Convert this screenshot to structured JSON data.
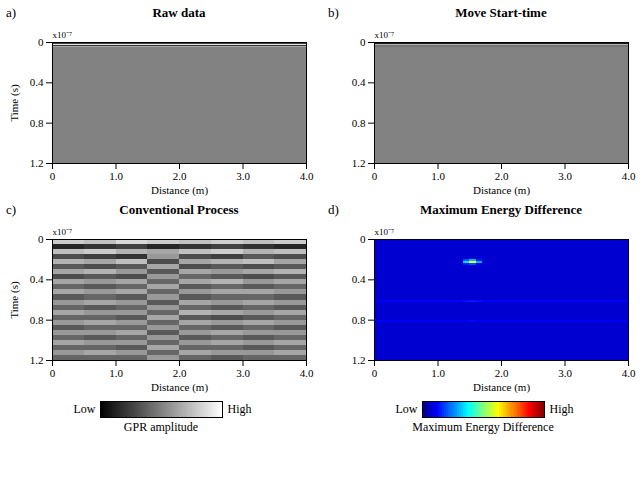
{
  "chart_data": [
    {
      "type": "heatmap",
      "title": "Raw data",
      "label": "a)",
      "xlabel": "Distance (m)",
      "ylabel": "Time (s)",
      "multiplier": "x10⁻⁷",
      "xlim": [
        0,
        4
      ],
      "ylim": [
        1.2,
        0
      ],
      "xticks": [
        0,
        {
          "value": 1,
          "label": "1.0"
        },
        {
          "value": 2,
          "label": "2.0"
        },
        {
          "value": 3,
          "label": "3.0"
        },
        {
          "value": 4,
          "label": "4.0"
        }
      ],
      "yticks": [
        0,
        0.4,
        0.8,
        1.2
      ],
      "colorscale": {
        "colors": [
          "#000000",
          "#ffffff"
        ],
        "range": [
          -1,
          1
        ]
      },
      "x_edges": [
        0,
        4
      ],
      "y_edges": [
        0,
        0.01,
        0.02,
        0.03,
        0.04,
        0.05,
        1.2
      ],
      "cells": [
        [
          0.5
        ],
        [
          -0.5
        ],
        [
          0.8
        ],
        [
          -0.6
        ],
        [
          0.3
        ],
        [
          0.02
        ]
      ]
    },
    {
      "type": "heatmap",
      "title": "Move Start-time",
      "label": "b)",
      "xlabel": "Distance (m)",
      "multiplier": "x10⁻⁷",
      "xlim": [
        0,
        4
      ],
      "ylim": [
        1.2,
        0
      ],
      "xticks": [
        0,
        {
          "value": 1,
          "label": "1.0"
        },
        {
          "value": 2,
          "label": "2.0"
        },
        {
          "value": 3,
          "label": "3.0"
        },
        {
          "value": 4,
          "label": "4.0"
        }
      ],
      "yticks": [
        0,
        0.4,
        0.8,
        1.2
      ],
      "colorscale": {
        "colors": [
          "#000000",
          "#ffffff"
        ],
        "range": [
          -1,
          1
        ]
      },
      "x_edges": [
        0,
        4
      ],
      "y_edges": [
        0,
        0.01,
        0.02,
        0.03,
        0.05,
        1.2
      ],
      "cells": [
        [
          0.9
        ],
        [
          -0.8
        ],
        [
          0.4
        ],
        [
          -0.1
        ],
        [
          0.02
        ]
      ]
    },
    {
      "type": "heatmap",
      "title": "Conventional Process",
      "label": "c)",
      "xlabel": "Distance (m)",
      "ylabel": "Time (s)",
      "multiplier": "x10⁻⁷",
      "xlim": [
        0,
        4
      ],
      "ylim": [
        1.2,
        0
      ],
      "xticks": [
        0,
        {
          "value": 1,
          "label": "1.0"
        },
        {
          "value": 2,
          "label": "2.0"
        },
        {
          "value": 3,
          "label": "3.0"
        },
        {
          "value": 4,
          "label": "4.0"
        }
      ],
      "yticks": [
        0,
        0.4,
        0.8,
        1.2
      ],
      "colorscale": {
        "colors": [
          "#000000",
          "#ffffff"
        ],
        "range": [
          -1,
          1
        ]
      },
      "colorbar": {
        "label": "GPR amplitude",
        "ticks": [
          {
            "value": -1,
            "label": "Low"
          },
          {
            "value": 1,
            "label": "High"
          }
        ]
      },
      "x_edges": [
        0,
        0.5,
        1,
        1.5,
        2,
        2.5,
        3,
        3.5,
        4
      ],
      "y_edges": [
        0,
        0.05,
        0.1,
        0.15,
        0.2,
        0.25,
        0.3,
        0.35,
        0.4,
        0.45,
        0.5,
        0.55,
        0.6,
        0.65,
        0.7,
        0.75,
        0.8,
        0.85,
        0.9,
        0.95,
        1,
        1.05,
        1.1,
        1.15,
        1.2
      ],
      "cells": [
        [
          0.6,
          0.5,
          0.7,
          0.6,
          0.5,
          0.6,
          0.5,
          0.6
        ],
        [
          -0.7,
          -0.6,
          -0.5,
          -0.7,
          -0.6,
          -0.5,
          -0.6,
          -0.7
        ],
        [
          0.5,
          0.6,
          0.4,
          0.3,
          0.5,
          0.6,
          0.4,
          0.5
        ],
        [
          -0.4,
          -0.5,
          -0.6,
          0.2,
          -0.4,
          -0.5,
          -0.3,
          -0.4
        ],
        [
          0.4,
          0.3,
          0.5,
          -0.4,
          0.3,
          0.4,
          0.5,
          0.3
        ],
        [
          -0.3,
          -0.4,
          -0.3,
          0.3,
          -0.4,
          -0.3,
          -0.4,
          -0.3
        ],
        [
          0.3,
          0.4,
          0.2,
          -0.3,
          0.3,
          0.2,
          0.3,
          0.4
        ],
        [
          -0.4,
          -0.3,
          -0.4,
          0.2,
          -0.2,
          -0.3,
          -0.4,
          -0.3
        ],
        [
          0.3,
          0.2,
          0.3,
          -0.2,
          0.3,
          0.4,
          0.2,
          0.3
        ],
        [
          -0.2,
          -0.3,
          -0.2,
          0.3,
          -0.3,
          -0.2,
          -0.3,
          -0.2
        ],
        [
          0.3,
          0.2,
          0.3,
          -0.2,
          0.2,
          0.3,
          0.3,
          0.2
        ],
        [
          -0.3,
          -0.2,
          -0.3,
          0.2,
          -0.3,
          -0.2,
          -0.2,
          -0.3
        ],
        [
          0.2,
          0.3,
          0.2,
          -0.3,
          0.3,
          0.2,
          0.3,
          0.2
        ],
        [
          -0.2,
          -0.3,
          -0.2,
          0.2,
          -0.2,
          -0.3,
          -0.2,
          -0.3
        ],
        [
          0.3,
          0.2,
          0.2,
          -0.2,
          0.4,
          0.3,
          0.2,
          0.3
        ],
        [
          -0.2,
          -0.2,
          -0.3,
          0.3,
          -0.3,
          -0.4,
          -0.3,
          -0.2
        ],
        [
          0.2,
          0.3,
          0.2,
          -0.2,
          0.3,
          0.2,
          0.3,
          0.2
        ],
        [
          -0.3,
          -0.2,
          -0.2,
          0.2,
          -0.2,
          -0.3,
          -0.2,
          -0.3
        ],
        [
          0.2,
          0.2,
          0.3,
          -0.3,
          0.2,
          0.3,
          0.2,
          0.2
        ],
        [
          -0.2,
          -0.3,
          -0.2,
          0.2,
          -0.3,
          -0.2,
          -0.3,
          -0.2
        ],
        [
          0.3,
          0.2,
          0.2,
          -0.2,
          0.2,
          0.3,
          0.2,
          0.3
        ],
        [
          -0.2,
          -0.2,
          -0.3,
          0.3,
          -0.2,
          -0.2,
          -0.3,
          -0.2
        ],
        [
          0.2,
          0.3,
          0.2,
          -0.2,
          0.3,
          0.2,
          0.2,
          0.3
        ],
        [
          -0.2,
          -0.2,
          -0.2,
          0.2,
          -0.2,
          -0.3,
          -0.2,
          -0.2
        ]
      ]
    },
    {
      "type": "heatmap",
      "title": "Maximum Energy Difference",
      "label": "d)",
      "xlabel": "Distance (m)",
      "multiplier": "x10⁻⁷",
      "xlim": [
        0,
        4
      ],
      "ylim": [
        1.2,
        0
      ],
      "xticks": [
        0,
        {
          "value": 1,
          "label": "1.0"
        },
        {
          "value": 2,
          "label": "2.0"
        },
        {
          "value": 3,
          "label": "3.0"
        },
        {
          "value": 4,
          "label": "4.0"
        }
      ],
      "yticks": [
        0,
        0.4,
        0.8,
        1.2
      ],
      "colorscale": {
        "colors": [
          "#00007f",
          "#0000ff",
          "#007fff",
          "#00ffff",
          "#7fff7f",
          "#ffff00",
          "#ff7f00",
          "#ff0000",
          "#7f0000"
        ],
        "range": [
          0,
          1
        ]
      },
      "colorbar": {
        "label": "Maximum Energy Difference",
        "ticks": [
          {
            "value": 0,
            "label": "Low"
          },
          {
            "value": 1,
            "label": "High"
          }
        ]
      },
      "x_edges": [
        0,
        1.4,
        1.5,
        1.6,
        1.7,
        4
      ],
      "y_edges": [
        0,
        0.2,
        0.22,
        0.24,
        0.26,
        0.6,
        0.62,
        0.8,
        0.82,
        1.2
      ],
      "cells": [
        [
          0.08,
          0.08,
          0.08,
          0.08,
          0.08
        ],
        [
          0.08,
          0.2,
          0.3,
          0.15,
          0.08
        ],
        [
          0.08,
          0.35,
          0.6,
          0.3,
          0.08
        ],
        [
          0.08,
          0.15,
          0.2,
          0.12,
          0.08
        ],
        [
          0.08,
          0.08,
          0.08,
          0.08,
          0.08
        ],
        [
          0.12,
          0.14,
          0.15,
          0.14,
          0.12
        ],
        [
          0.08,
          0.08,
          0.08,
          0.08,
          0.08
        ],
        [
          0.12,
          0.12,
          0.13,
          0.12,
          0.12
        ],
        [
          0.08,
          0.08,
          0.08,
          0.08,
          0.08
        ]
      ]
    }
  ]
}
